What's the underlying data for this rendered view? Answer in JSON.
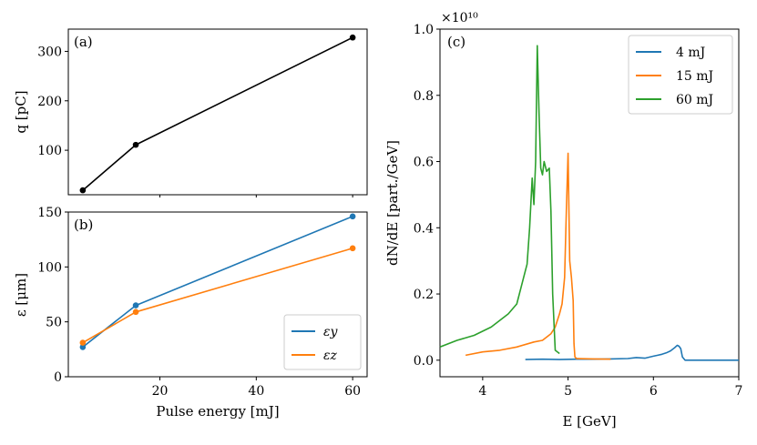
{
  "chart_data": [
    {
      "type": "line",
      "panel": "(a)",
      "ylabel": "q [pC]",
      "x": [
        4,
        15,
        60
      ],
      "series": [
        {
          "values": [
            19,
            111,
            328
          ],
          "color": "#000000"
        }
      ],
      "xlim": [
        1,
        63
      ],
      "ylim": [
        10,
        345
      ],
      "yticks": [
        100,
        200,
        300
      ]
    },
    {
      "type": "line",
      "panel": "(b)",
      "xlabel": "Pulse energy [mJ]",
      "ylabel": "ε [μm]",
      "x": [
        4,
        15,
        60
      ],
      "series": [
        {
          "name": "ε_y",
          "label": "εy",
          "values": [
            27,
            65,
            146
          ],
          "color": "#1f77b4"
        },
        {
          "name": "ε_z",
          "label": "εz",
          "values": [
            31,
            59,
            117
          ],
          "color": "#ff7f0e"
        }
      ],
      "xlim": [
        1,
        63
      ],
      "ylim": [
        0,
        150
      ],
      "xticks": [
        20,
        40,
        60
      ],
      "yticks": [
        0,
        50,
        100,
        150
      ],
      "legend": "lower-right"
    },
    {
      "type": "line",
      "panel": "(c)",
      "xlabel": "E [GeV]",
      "ylabel": "dN/dE [part./GeV]",
      "y_multiplier": "×10¹⁰",
      "xlim": [
        3.5,
        7
      ],
      "ylim": [
        -0.05,
        1.0
      ],
      "xticks": [
        4,
        5,
        6,
        7
      ],
      "yticks": [
        0.0,
        0.2,
        0.4,
        0.6,
        0.8,
        1.0
      ],
      "legend": "top-right",
      "series": [
        {
          "name": "4 mJ",
          "color": "#1f77b4",
          "x": [
            4.5,
            4.7,
            4.9,
            5.1,
            5.3,
            5.5,
            5.7,
            5.8,
            5.9,
            6.0,
            6.05,
            6.1,
            6.15,
            6.2,
            6.25,
            6.28,
            6.3,
            6.32,
            6.34,
            6.37,
            7.0
          ],
          "y": [
            0.002,
            0.003,
            0.002,
            0.003,
            0.003,
            0.004,
            0.005,
            0.008,
            0.006,
            0.012,
            0.015,
            0.018,
            0.022,
            0.028,
            0.038,
            0.045,
            0.042,
            0.035,
            0.01,
            0.0,
            0.0
          ]
        },
        {
          "name": "15 mJ",
          "color": "#ff7f0e",
          "x": [
            3.8,
            4.0,
            4.2,
            4.4,
            4.6,
            4.7,
            4.8,
            4.85,
            4.9,
            4.93,
            4.96,
            4.98,
            5.0,
            5.02,
            5.04,
            5.06,
            5.07,
            5.08,
            5.1,
            5.3,
            5.5
          ],
          "y": [
            0.015,
            0.025,
            0.03,
            0.04,
            0.055,
            0.06,
            0.08,
            0.1,
            0.14,
            0.17,
            0.25,
            0.45,
            0.625,
            0.3,
            0.25,
            0.18,
            0.05,
            0.01,
            0.005,
            0.004,
            0.003
          ]
        },
        {
          "name": "60 mJ",
          "color": "#2ca02c",
          "x": [
            3.5,
            3.7,
            3.9,
            4.1,
            4.3,
            4.4,
            4.45,
            4.5,
            4.52,
            4.55,
            4.58,
            4.6,
            4.62,
            4.64,
            4.66,
            4.68,
            4.7,
            4.72,
            4.75,
            4.78,
            4.8,
            4.82,
            4.85,
            4.9
          ],
          "y": [
            0.04,
            0.06,
            0.075,
            0.1,
            0.14,
            0.17,
            0.22,
            0.27,
            0.29,
            0.4,
            0.55,
            0.47,
            0.6,
            0.95,
            0.75,
            0.58,
            0.56,
            0.6,
            0.57,
            0.58,
            0.45,
            0.2,
            0.03,
            0.02
          ]
        }
      ]
    }
  ]
}
